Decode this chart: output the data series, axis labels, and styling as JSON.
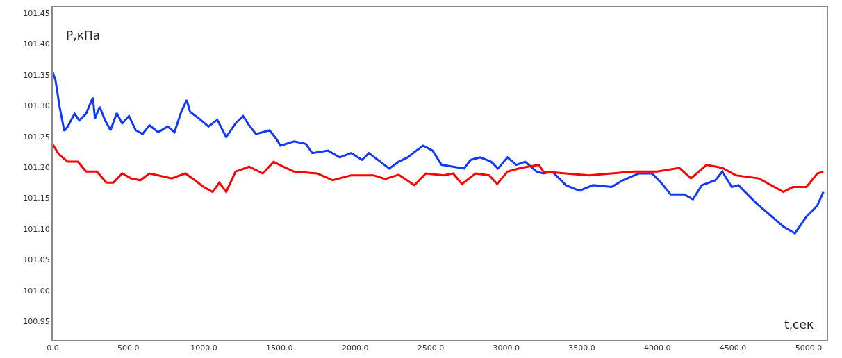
{
  "chart_data": {
    "type": "line",
    "xlabel": "t,сек",
    "ylabel": "P,кПа",
    "xlim": [
      0,
      5120
    ],
    "ylim": [
      100.92,
      101.46
    ],
    "xticks": [
      {
        "value": 0,
        "label": "0.0"
      },
      {
        "value": 500,
        "label": "500.0"
      },
      {
        "value": 1000,
        "label": "1000.0"
      },
      {
        "value": 1500,
        "label": "1500.0"
      },
      {
        "value": 2000,
        "label": "2000.0"
      },
      {
        "value": 2500,
        "label": "2500.0"
      },
      {
        "value": 3000,
        "label": "3000.0"
      },
      {
        "value": 3500,
        "label": "3500.0"
      },
      {
        "value": 4000,
        "label": "4000.0"
      },
      {
        "value": 4500,
        "label": "4500.0"
      },
      {
        "value": 5000,
        "label": "5000.0"
      }
    ],
    "yticks": [
      {
        "value": 100.95,
        "label": "100.95"
      },
      {
        "value": 101.0,
        "label": "101.00"
      },
      {
        "value": 101.05,
        "label": "101.05"
      },
      {
        "value": 101.1,
        "label": "101.10"
      },
      {
        "value": 101.15,
        "label": "101.15"
      },
      {
        "value": 101.2,
        "label": "101.20"
      },
      {
        "value": 101.25,
        "label": "101.25"
      },
      {
        "value": 101.3,
        "label": "101.30"
      },
      {
        "value": 101.35,
        "label": "101.35"
      },
      {
        "value": 101.4,
        "label": "101.40"
      },
      {
        "value": 101.45,
        "label": "101.45"
      }
    ],
    "marker": "none",
    "line_style": "solid",
    "series": [
      {
        "color": "#1038ff",
        "x": [
          0,
          18,
          45,
          76,
          99,
          144,
          175,
          220,
          265,
          279,
          310,
          346,
          382,
          423,
          459,
          504,
          549,
          594,
          639,
          697,
          760,
          805,
          850,
          886,
          908,
          967,
          1030,
          1088,
          1147,
          1209,
          1259,
          1299,
          1344,
          1389,
          1434,
          1479,
          1506,
          1596,
          1673,
          1717,
          1821,
          1897,
          1974,
          2046,
          2091,
          2167,
          2226,
          2288,
          2347,
          2405,
          2450,
          2513,
          2572,
          2648,
          2720,
          2765,
          2828,
          2900,
          2945,
          3008,
          3066,
          3125,
          3201,
          3246,
          3305,
          3394,
          3484,
          3574,
          3696,
          3772,
          3876,
          3965,
          4024,
          4087,
          4177,
          4235,
          4294,
          4384,
          4429,
          4492,
          4536,
          4653,
          4743,
          4833,
          4910,
          4986,
          5058,
          5098
        ],
        "values": [
          101.354,
          101.341,
          101.298,
          101.259,
          101.266,
          101.287,
          101.276,
          101.287,
          101.313,
          101.279,
          101.298,
          101.276,
          101.26,
          101.288,
          101.271,
          101.283,
          101.26,
          101.254,
          101.268,
          101.257,
          101.266,
          101.257,
          101.29,
          101.309,
          101.29,
          101.279,
          101.266,
          101.277,
          101.249,
          101.271,
          101.283,
          101.268,
          101.254,
          101.257,
          101.26,
          101.246,
          101.235,
          101.242,
          101.238,
          101.223,
          101.227,
          101.216,
          101.223,
          101.212,
          101.223,
          101.209,
          101.198,
          101.209,
          101.216,
          101.227,
          101.235,
          101.227,
          101.204,
          101.201,
          101.198,
          101.212,
          101.216,
          101.209,
          101.198,
          101.216,
          101.204,
          101.209,
          101.193,
          101.19,
          101.193,
          101.171,
          101.162,
          101.171,
          101.168,
          101.179,
          101.19,
          101.19,
          101.175,
          101.156,
          101.156,
          101.148,
          101.171,
          101.179,
          101.193,
          101.168,
          101.171,
          101.142,
          101.123,
          101.104,
          101.093,
          101.12,
          101.138,
          101.16
        ]
      },
      {
        "color": "#ff0000",
        "x": [
          0,
          40,
          99,
          166,
          220,
          292,
          355,
          400,
          459,
          517,
          580,
          639,
          697,
          787,
          877,
          940,
          998,
          1057,
          1102,
          1147,
          1209,
          1299,
          1389,
          1461,
          1524,
          1596,
          1749,
          1852,
          1974,
          2122,
          2199,
          2288,
          2392,
          2468,
          2585,
          2648,
          2707,
          2797,
          2886,
          2940,
          3008,
          3098,
          3215,
          3246,
          3394,
          3547,
          3696,
          3844,
          3997,
          4145,
          4222,
          4325,
          4429,
          4518,
          4671,
          4833,
          4896,
          4986,
          5058,
          5098
        ],
        "values": [
          101.237,
          101.221,
          101.209,
          101.209,
          101.193,
          101.193,
          101.175,
          101.175,
          101.19,
          101.182,
          101.179,
          101.19,
          101.187,
          101.182,
          101.19,
          101.179,
          101.168,
          101.16,
          101.175,
          101.16,
          101.193,
          101.201,
          101.19,
          101.209,
          101.201,
          101.193,
          101.19,
          101.179,
          101.187,
          101.187,
          101.181,
          101.188,
          101.171,
          101.19,
          101.187,
          101.19,
          101.173,
          101.19,
          101.187,
          101.173,
          101.193,
          101.199,
          101.204,
          101.193,
          101.19,
          101.187,
          101.19,
          101.193,
          101.193,
          101.199,
          101.182,
          101.204,
          101.199,
          101.187,
          101.182,
          101.16,
          101.168,
          101.168,
          101.19,
          101.193
        ]
      }
    ]
  }
}
